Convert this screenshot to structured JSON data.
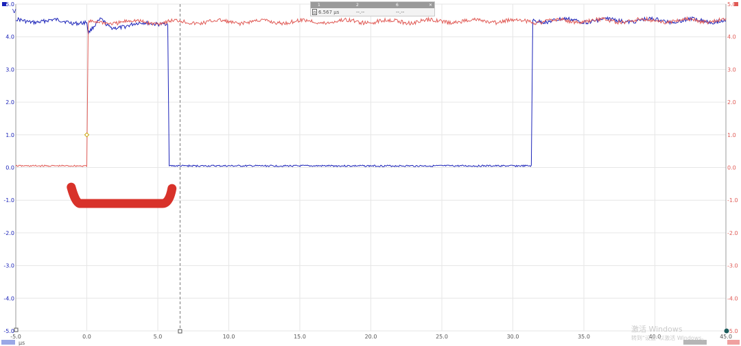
{
  "chart_data": {
    "type": "line",
    "xlim": [
      -5.0,
      45.0
    ],
    "ylim": [
      -5.0,
      5.0
    ],
    "x_unit": "µs",
    "y_unit": "V",
    "x_ticks": [
      "-5.0",
      "0.0",
      "5.0",
      "10.0",
      "15.0",
      "20.0",
      "25.0",
      "30.0",
      "35.0",
      "40.0",
      "45.0"
    ],
    "y_ticks": [
      "5.0",
      "4.0",
      "3.0",
      "2.0",
      "1.0",
      "0.0",
      "-1.0",
      "-2.0",
      "-3.0",
      "-4.0",
      "-5.0"
    ],
    "grid": true,
    "series": [
      {
        "color": "#1a22b8",
        "x": [
          -5.0,
          0.0,
          0.1,
          1.0,
          1.6,
          5.7,
          5.8,
          31.3,
          31.4,
          45.0
        ],
        "y": [
          4.5,
          4.45,
          4.1,
          4.5,
          4.3,
          4.45,
          0.05,
          0.05,
          4.5,
          4.5
        ]
      },
      {
        "color": "#e05a55",
        "x": [
          -5.0,
          0.0,
          0.1,
          1.0,
          5.8,
          45.0
        ],
        "y": [
          0.05,
          0.05,
          4.4,
          4.45,
          4.45,
          4.5
        ]
      }
    ],
    "cursor_x": 6.567,
    "trigger": {
      "x": 0.0,
      "y": 1.0
    },
    "annotation": {
      "type": "hand-drawn bracket",
      "color": "#d8322a",
      "x": [
        -1.0,
        6.0
      ],
      "y": [
        -0.6,
        -1.1
      ]
    }
  },
  "measurement_panel": {
    "columns": [
      "1",
      "2",
      "6"
    ],
    "row_marker": "Ω",
    "values": [
      "6.567 µs",
      "--.--",
      "--.--"
    ]
  },
  "colors": {
    "chA": "#1a22b8",
    "chB": "#e05a55",
    "grid": "#e6e6e6",
    "annotation": "#d8322a"
  },
  "watermark": {
    "line1": "激活 Windows",
    "line2": "转到“设置”以激活 Windows。"
  },
  "corner_labels": {
    "left_unit": "V",
    "left_axis_unit": "µs"
  }
}
